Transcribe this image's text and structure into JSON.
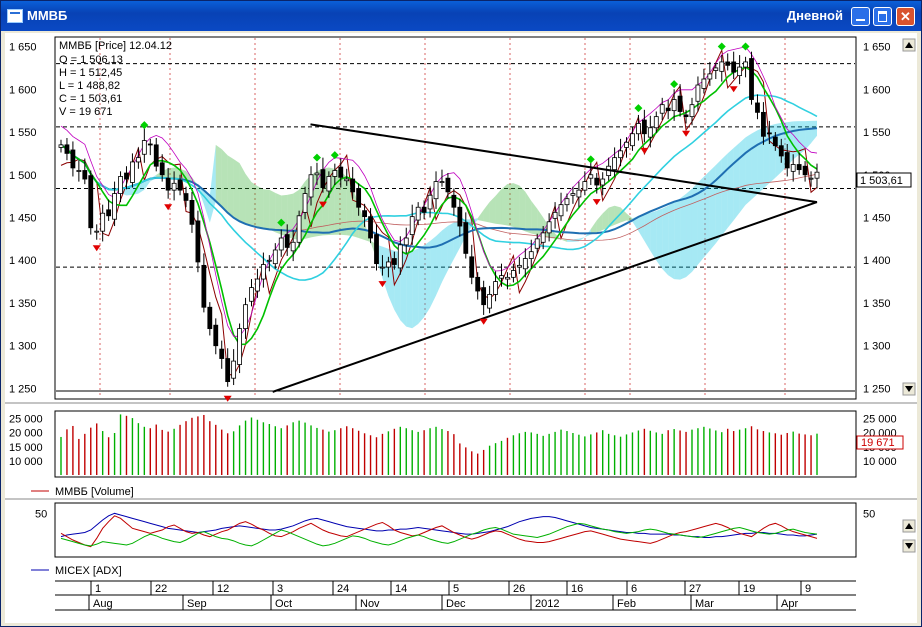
{
  "window": {
    "title": "ММВБ",
    "mode": "Дневной"
  },
  "legend": {
    "main": "ММВБ [Price] 12.04.12",
    "o": "O = 1 506,13",
    "h": "H = 1 512,45",
    "l": "L = 1 488,82",
    "c": "C = 1 503,61",
    "v": "V = 19 671",
    "volume": "ММВБ [Volume]",
    "adx": "MICEX [ADX]"
  },
  "last_price_label": "1 503,61",
  "last_volume_label": "19 671",
  "colors": {
    "up": "#00b000",
    "down": "#c00000",
    "kumo_up": "#30b030",
    "kumo_down": "#00c0e0",
    "line_red": "#8b0000",
    "ma_green": "#00c000",
    "ma_blue": "#1f6fb2",
    "ma_cyan": "#30d0e0",
    "band": "#c000c0",
    "adx_blue": "#0000b0"
  },
  "icons": {
    "up_signal": "green-diamond",
    "down_signal": "red-arrow-down"
  },
  "chart_data": [
    {
      "type": "candlestick",
      "title": "ММВБ [Price] 12.04.12",
      "ylim": [
        1240,
        1660
      ],
      "yticks": [
        "1 650",
        "1 600",
        "1 550",
        "1 500",
        "1 450",
        "1 400",
        "1 350",
        "1 300",
        "1 250"
      ],
      "ytick_values": [
        1650,
        1600,
        1550,
        1500,
        1450,
        1400,
        1350,
        1300,
        1250
      ],
      "hlines": [
        1630,
        1556,
        1484,
        1392,
        1247
      ],
      "trendlines": [
        [
          0.33,
          1559,
          1.0,
          1468
        ],
        [
          0.28,
          1246,
          1.0,
          1468
        ]
      ],
      "close": [
        1535,
        1525,
        1508,
        1505,
        1495,
        1438,
        1434,
        1455,
        1452,
        1478,
        1498,
        1495,
        1515,
        1520,
        1540,
        1535,
        1510,
        1500,
        1482,
        1490,
        1482,
        1470,
        1442,
        1398,
        1345,
        1320,
        1300,
        1285,
        1258,
        1282,
        1320,
        1348,
        1368,
        1378,
        1395,
        1400,
        1412,
        1426,
        1415,
        1421,
        1452,
        1478,
        1500,
        1502,
        1485,
        1498,
        1505,
        1497,
        1495,
        1480,
        1462,
        1451,
        1426,
        1396,
        1392,
        1398,
        1395,
        1418,
        1426,
        1451,
        1462,
        1456,
        1476,
        1492,
        1492,
        1480,
        1462,
        1440,
        1408,
        1380,
        1364,
        1348,
        1360,
        1375,
        1382,
        1380,
        1388,
        1394,
        1402,
        1410,
        1425,
        1432,
        1445,
        1456,
        1465,
        1472,
        1478,
        1482,
        1492,
        1500,
        1488,
        1495,
        1510,
        1520,
        1528,
        1538,
        1548,
        1560,
        1548,
        1555,
        1568,
        1582,
        1575,
        1588,
        1574,
        1568,
        1582,
        1605,
        1612,
        1618,
        1625,
        1632,
        1628,
        1620,
        1626,
        1632,
        1588,
        1573,
        1545,
        1548,
        1534,
        1522,
        1508,
        1512,
        1506,
        1500,
        1496,
        1503
      ]
    },
    {
      "type": "bar",
      "title": "ММВБ [Volume]",
      "ylim": [
        5000,
        27000
      ],
      "yticks": [
        "25 000",
        "20 000",
        "15 000",
        "10 000"
      ],
      "ytick_values": [
        25000,
        20000,
        15000,
        10000
      ],
      "values": [
        18500,
        21200,
        22400,
        17800,
        19600,
        21800,
        23300,
        20600,
        18400,
        19900,
        26500,
        26000,
        25200,
        23400,
        22100,
        21600,
        22900,
        21000,
        20400,
        21400,
        22800,
        24100,
        25300,
        25800,
        26300,
        24100,
        22800,
        21100,
        19800,
        20500,
        22600,
        24300,
        25400,
        24600,
        23700,
        23100,
        22300,
        21600,
        22600,
        23700,
        24300,
        23600,
        22600,
        21700,
        21100,
        20400,
        20900,
        21600,
        22300,
        21600,
        20700,
        19800,
        19100,
        18400,
        19600,
        20500,
        21400,
        22100,
        21600,
        20900,
        20300,
        20900,
        21600,
        22100,
        21300,
        20600,
        19500,
        16200,
        14800,
        13400,
        12600,
        13900,
        15400,
        16300,
        17100,
        18200,
        19100,
        19800,
        20300,
        20100,
        19600,
        18900,
        19600,
        20300,
        21100,
        20600,
        19900,
        19300,
        18700,
        19400,
        20100,
        20900,
        19600,
        19100,
        18600,
        19400,
        20100,
        20800,
        21400,
        20700,
        20100,
        19600,
        20900,
        21300,
        20800,
        20300,
        21100,
        21600,
        22100,
        21500,
        20800,
        20200,
        21400,
        20600,
        21100,
        21600,
        22300,
        21200,
        20600,
        20100,
        19800,
        19300,
        19900,
        20400,
        19700,
        19400,
        19100,
        19671
      ]
    },
    {
      "type": "line",
      "title": "MICEX [ADX]",
      "ylim": [
        0,
        60
      ],
      "yticks": [
        "50"
      ],
      "ytick_values": [
        50
      ],
      "series": [
        {
          "color": "#0000b0",
          "values": [
            22,
            24,
            25,
            26,
            27,
            30,
            36,
            42,
            47,
            50,
            48,
            46,
            44,
            42,
            40,
            38,
            36,
            34,
            32,
            31,
            30,
            29,
            28,
            27,
            28,
            29,
            30,
            32,
            33,
            34,
            35,
            34,
            33,
            32,
            31,
            30,
            30,
            31,
            33,
            35,
            38,
            41,
            43,
            44,
            42,
            40,
            38,
            36,
            34,
            33,
            32,
            31,
            30,
            29,
            29,
            30,
            30,
            31,
            31,
            32,
            33,
            32,
            31,
            30,
            29,
            28,
            27,
            26,
            25,
            25,
            26,
            27,
            28,
            30,
            32,
            34,
            37,
            40,
            42,
            44,
            45,
            46,
            46,
            45,
            43,
            41,
            39,
            37,
            35,
            33,
            32,
            31,
            30,
            29,
            28,
            27,
            27,
            26,
            26,
            25,
            25,
            25,
            25,
            24,
            24,
            23,
            22,
            22,
            21,
            21,
            22,
            22,
            23,
            24,
            25,
            26,
            26,
            27,
            27,
            26,
            26,
            25,
            24,
            24,
            23,
            23,
            24,
            25
          ]
        },
        {
          "color": "#c00000",
          "values": [
            26,
            22,
            18,
            15,
            12,
            10,
            20,
            32,
            40,
            47,
            44,
            38,
            32,
            30,
            28,
            26,
            28,
            30,
            34,
            36,
            32,
            28,
            26,
            27,
            24,
            22,
            25,
            28,
            30,
            34,
            38,
            40,
            37,
            33,
            30,
            26,
            23,
            22,
            25,
            28,
            32,
            35,
            38,
            34,
            30,
            27,
            25,
            23,
            22,
            25,
            28,
            31,
            34,
            37,
            39,
            35,
            30,
            27,
            25,
            23,
            24,
            27,
            30,
            33,
            35,
            31,
            27,
            24,
            21,
            19,
            21,
            24,
            27,
            29,
            28,
            25,
            22,
            19,
            17,
            16,
            15,
            15,
            16,
            18,
            20,
            22,
            24,
            26,
            28,
            29,
            27,
            25,
            23,
            21,
            19,
            18,
            17,
            16,
            15,
            14,
            16,
            19,
            22,
            25,
            27,
            28,
            30,
            32,
            34,
            36,
            38,
            36,
            33,
            29,
            26,
            24,
            22,
            27,
            32,
            36,
            38,
            35,
            31,
            28,
            26,
            24,
            22,
            20
          ]
        },
        {
          "color": "#00b000",
          "values": [
            20,
            18,
            16,
            14,
            12,
            11,
            13,
            16,
            15,
            14,
            13,
            12,
            14,
            18,
            22,
            25,
            23,
            20,
            18,
            16,
            15,
            18,
            22,
            26,
            28,
            25,
            22,
            20,
            19,
            17,
            14,
            12,
            11,
            14,
            18,
            22,
            26,
            30,
            28,
            25,
            22,
            19,
            16,
            13,
            11,
            12,
            14,
            17,
            20,
            23,
            22,
            20,
            17,
            15,
            13,
            12,
            14,
            17,
            20,
            22,
            24,
            22,
            19,
            17,
            15,
            14,
            16,
            19,
            22,
            25,
            27,
            30,
            32,
            33,
            31,
            28,
            25,
            24,
            23,
            22,
            21,
            23,
            25,
            28,
            31,
            34,
            36,
            38,
            37,
            35,
            33,
            31,
            30,
            28,
            27,
            26,
            27,
            28,
            30,
            31,
            30,
            28,
            26,
            25,
            24,
            23,
            22,
            21,
            22,
            24,
            26,
            28,
            30,
            32,
            33,
            31,
            29,
            27,
            26,
            25,
            26,
            28,
            30,
            31,
            29,
            27,
            26,
            25
          ]
        }
      ]
    }
  ],
  "x_axis": {
    "days": [
      "1",
      "22",
      "12",
      "3",
      "24",
      "14",
      "5",
      "26",
      "16",
      "6",
      "27",
      "19",
      "9"
    ],
    "months": [
      "Aug",
      "Sep",
      "Oct",
      "Nov",
      "Dec",
      "2012",
      "Feb",
      "Mar",
      "Apr"
    ]
  }
}
